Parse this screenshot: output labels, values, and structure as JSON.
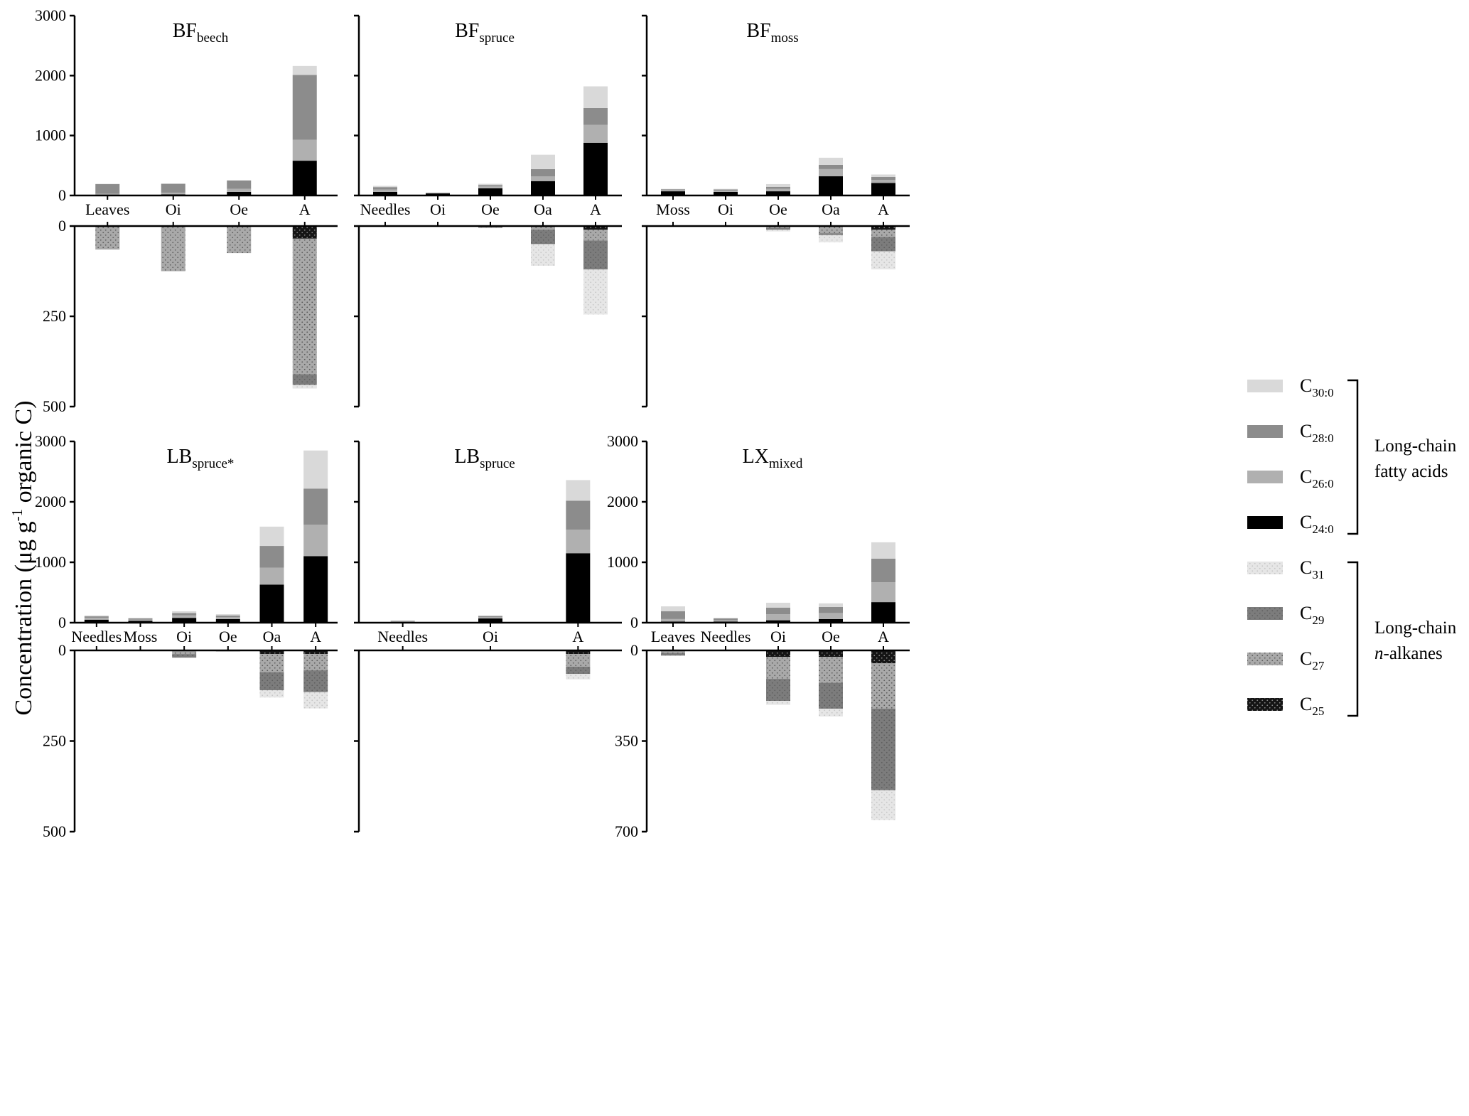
{
  "y_axis_label": {
    "main": "Concentration (μg g",
    "sup": "-1",
    "rest": " organic C)"
  },
  "colors": {
    "c30": "#d9d9d9",
    "c28": "#8c8c8c",
    "c26": "#b0b0b0",
    "c24": "#000000",
    "c31": "#e3e3e3",
    "c29": "#7a7a7a",
    "c27": "#a6a6a6",
    "c25": "#111111"
  },
  "legend": {
    "groups": [
      {
        "label_lines": [
          "Long-chain",
          "fatty acids"
        ],
        "label_italic": [
          false,
          false
        ],
        "items": [
          {
            "key": "c30",
            "main": "C",
            "sub": "30:0"
          },
          {
            "key": "c28",
            "main": "C",
            "sub": "28:0"
          },
          {
            "key": "c26",
            "main": "C",
            "sub": "26:0"
          },
          {
            "key": "c24",
            "main": "C",
            "sub": "24:0"
          }
        ]
      },
      {
        "label_lines": [
          "Long-chain",
          "n-alkanes"
        ],
        "label_italic": [
          false,
          true
        ],
        "items": [
          {
            "key": "c31",
            "main": "C",
            "sub": "31"
          },
          {
            "key": "c29",
            "main": "C",
            "sub": "29"
          },
          {
            "key": "c27",
            "main": "C",
            "sub": "27"
          },
          {
            "key": "c25",
            "main": "C",
            "sub": "25"
          }
        ]
      }
    ]
  },
  "chart_data": [
    {
      "type": "bar",
      "stacked": true,
      "title_main": "BF",
      "title_sub": "beech",
      "categories": [
        "Leaves",
        "Oi",
        "Oe",
        "A"
      ],
      "fatty_ylim": [
        0,
        3000
      ],
      "fatty_ticks": [
        0,
        1000,
        2000,
        3000
      ],
      "alkane_ylim": [
        0,
        500
      ],
      "alkane_ticks": [
        0,
        250,
        500
      ],
      "show_tick_labels": true,
      "fatty_acids": [
        {
          "name": "C24:0",
          "key": "c24",
          "values": [
            10,
            20,
            60,
            580
          ]
        },
        {
          "name": "C26:0",
          "key": "c26",
          "values": [
            20,
            25,
            50,
            350
          ]
        },
        {
          "name": "C28:0",
          "key": "c28",
          "values": [
            160,
            150,
            140,
            1080
          ]
        },
        {
          "name": "C30:0",
          "key": "c30",
          "values": [
            5,
            5,
            5,
            150
          ]
        }
      ],
      "alkanes": [
        {
          "name": "C25",
          "key": "c25",
          "values": [
            0,
            0,
            0,
            35
          ]
        },
        {
          "name": "C27",
          "key": "c27",
          "values": [
            65,
            125,
            75,
            375
          ]
        },
        {
          "name": "C29",
          "key": "c29",
          "values": [
            0,
            0,
            0,
            30
          ]
        },
        {
          "name": "C31",
          "key": "c31",
          "values": [
            0,
            0,
            0,
            10
          ]
        }
      ]
    },
    {
      "type": "bar",
      "stacked": true,
      "title_main": "BF",
      "title_sub": "spruce",
      "categories": [
        "Needles",
        "Oi",
        "Oe",
        "Oa",
        "A"
      ],
      "fatty_ylim": [
        0,
        3000
      ],
      "fatty_ticks": [
        0,
        1000,
        2000,
        3000
      ],
      "alkane_ylim": [
        0,
        500
      ],
      "alkane_ticks": [
        0,
        250,
        500
      ],
      "show_tick_labels": false,
      "fatty_acids": [
        {
          "name": "C24:0",
          "key": "c24",
          "values": [
            60,
            35,
            120,
            240,
            880
          ]
        },
        {
          "name": "C26:0",
          "key": "c26",
          "values": [
            40,
            5,
            30,
            80,
            300
          ]
        },
        {
          "name": "C28:0",
          "key": "c28",
          "values": [
            40,
            5,
            25,
            120,
            280
          ]
        },
        {
          "name": "C30:0",
          "key": "c30",
          "values": [
            20,
            5,
            20,
            240,
            360
          ]
        }
      ],
      "alkanes": [
        {
          "name": "C25",
          "key": "c25",
          "values": [
            0,
            0,
            0,
            0,
            10
          ]
        },
        {
          "name": "C27",
          "key": "c27",
          "values": [
            0,
            0,
            3,
            10,
            30
          ]
        },
        {
          "name": "C29",
          "key": "c29",
          "values": [
            0,
            0,
            2,
            40,
            80
          ]
        },
        {
          "name": "C31",
          "key": "c31",
          "values": [
            0,
            0,
            0,
            60,
            125
          ]
        }
      ]
    },
    {
      "type": "bar",
      "stacked": true,
      "title_main": "BF",
      "title_sub": "moss",
      "categories": [
        "Moss",
        "Oi",
        "Oe",
        "Oa",
        "A"
      ],
      "fatty_ylim": [
        0,
        3000
      ],
      "fatty_ticks": [
        0,
        1000,
        2000,
        3000
      ],
      "alkane_ylim": [
        0,
        500
      ],
      "alkane_ticks": [
        0,
        250,
        500
      ],
      "show_tick_labels": false,
      "fatty_acids": [
        {
          "name": "C24:0",
          "key": "c24",
          "values": [
            70,
            60,
            70,
            320,
            210
          ]
        },
        {
          "name": "C26:0",
          "key": "c26",
          "values": [
            20,
            20,
            40,
            120,
            50
          ]
        },
        {
          "name": "C28:0",
          "key": "c28",
          "values": [
            15,
            20,
            35,
            70,
            50
          ]
        },
        {
          "name": "C30:0",
          "key": "c30",
          "values": [
            5,
            10,
            45,
            120,
            40
          ]
        }
      ],
      "alkanes": [
        {
          "name": "C25",
          "key": "c25",
          "values": [
            0,
            0,
            0,
            0,
            10
          ]
        },
        {
          "name": "C27",
          "key": "c27",
          "values": [
            0,
            2,
            5,
            20,
            20
          ]
        },
        {
          "name": "C29",
          "key": "c29",
          "values": [
            0,
            0,
            5,
            5,
            40
          ]
        },
        {
          "name": "C31",
          "key": "c31",
          "values": [
            0,
            0,
            5,
            20,
            50
          ]
        }
      ]
    },
    {
      "type": "bar",
      "stacked": true,
      "title_main": "LB",
      "title_sub": "spruce*",
      "categories": [
        "Needles",
        "Moss",
        "Oi",
        "Oe",
        "Oa",
        "A"
      ],
      "fatty_ylim": [
        0,
        3000
      ],
      "fatty_ticks": [
        0,
        1000,
        2000,
        3000
      ],
      "alkane_ylim": [
        0,
        500
      ],
      "alkane_ticks": [
        0,
        250,
        500
      ],
      "show_tick_labels": true,
      "fatty_acids": [
        {
          "name": "C24:0",
          "key": "c24",
          "values": [
            50,
            30,
            80,
            60,
            630,
            1100
          ]
        },
        {
          "name": "C26:0",
          "key": "c26",
          "values": [
            30,
            20,
            40,
            30,
            280,
            520
          ]
        },
        {
          "name": "C28:0",
          "key": "c28",
          "values": [
            25,
            20,
            40,
            30,
            360,
            600
          ]
        },
        {
          "name": "C30:0",
          "key": "c30",
          "values": [
            15,
            10,
            30,
            20,
            320,
            630
          ]
        }
      ],
      "alkanes": [
        {
          "name": "C25",
          "key": "c25",
          "values": [
            0,
            0,
            0,
            0,
            10,
            10
          ]
        },
        {
          "name": "C27",
          "key": "c27",
          "values": [
            0,
            2,
            10,
            3,
            50,
            45
          ]
        },
        {
          "name": "C29",
          "key": "c29",
          "values": [
            0,
            0,
            10,
            0,
            50,
            60
          ]
        },
        {
          "name": "C31",
          "key": "c31",
          "values": [
            0,
            0,
            0,
            0,
            20,
            45
          ]
        }
      ]
    },
    {
      "type": "bar",
      "stacked": true,
      "title_main": "LB",
      "title_sub": "spruce",
      "categories": [
        "Needles",
        "Oi",
        "A"
      ],
      "fatty_ylim": [
        0,
        3000
      ],
      "fatty_ticks": [
        0,
        1000,
        2000,
        3000
      ],
      "alkane_ylim": [
        0,
        500
      ],
      "alkane_ticks": [
        0,
        250,
        500
      ],
      "show_tick_labels": false,
      "fatty_acids": [
        {
          "name": "C24:0",
          "key": "c24",
          "values": [
            10,
            70,
            1150
          ]
        },
        {
          "name": "C26:0",
          "key": "c26",
          "values": [
            10,
            20,
            390
          ]
        },
        {
          "name": "C28:0",
          "key": "c28",
          "values": [
            10,
            20,
            480
          ]
        },
        {
          "name": "C30:0",
          "key": "c30",
          "values": [
            5,
            10,
            340
          ]
        }
      ],
      "alkanes": [
        {
          "name": "C25",
          "key": "c25",
          "values": [
            0,
            0,
            10
          ]
        },
        {
          "name": "C27",
          "key": "c27",
          "values": [
            0,
            0,
            35
          ]
        },
        {
          "name": "C29",
          "key": "c29",
          "values": [
            0,
            0,
            20
          ]
        },
        {
          "name": "C31",
          "key": "c31",
          "values": [
            0,
            0,
            15
          ]
        }
      ]
    },
    {
      "type": "bar",
      "stacked": true,
      "title_main": "LX",
      "title_sub": "mixed",
      "categories": [
        "Leaves",
        "Needles",
        "Oi",
        "Oe",
        "A"
      ],
      "fatty_ylim": [
        0,
        3000
      ],
      "fatty_ticks": [
        0,
        1000,
        2000,
        3000
      ],
      "alkane_ylim": [
        0,
        700
      ],
      "alkane_ticks": [
        0,
        350,
        700
      ],
      "show_tick_labels": true,
      "fatty_acids": [
        {
          "name": "C24:0",
          "key": "c24",
          "values": [
            20,
            20,
            40,
            60,
            340
          ]
        },
        {
          "name": "C26:0",
          "key": "c26",
          "values": [
            40,
            20,
            100,
            100,
            330
          ]
        },
        {
          "name": "C28:0",
          "key": "c28",
          "values": [
            130,
            30,
            110,
            100,
            390
          ]
        },
        {
          "name": "C30:0",
          "key": "c30",
          "values": [
            80,
            10,
            80,
            60,
            270
          ]
        }
      ],
      "alkanes": [
        {
          "name": "C25",
          "key": "c25",
          "values": [
            0,
            0,
            25,
            25,
            50
          ]
        },
        {
          "name": "C27",
          "key": "c27",
          "values": [
            10,
            0,
            85,
            100,
            175
          ]
        },
        {
          "name": "C29",
          "key": "c29",
          "values": [
            10,
            0,
            85,
            100,
            315
          ]
        },
        {
          "name": "C31",
          "key": "c31",
          "values": [
            0,
            0,
            15,
            30,
            115
          ]
        }
      ]
    }
  ]
}
